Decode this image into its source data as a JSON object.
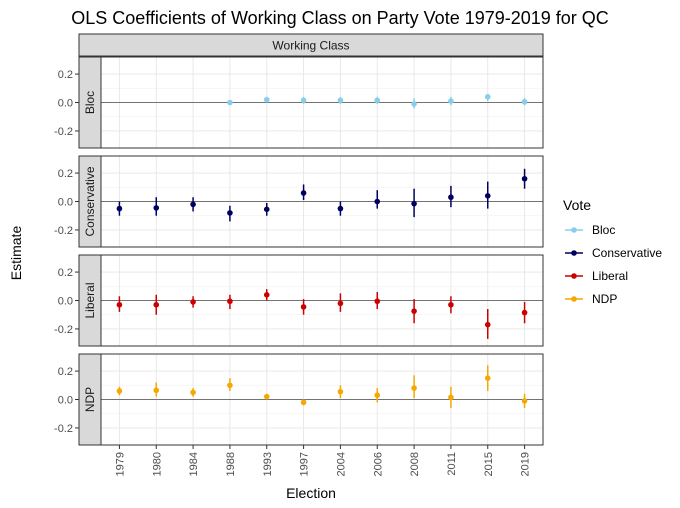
{
  "chart_data": {
    "type": "scatter",
    "title": "OLS Coefficients of Working Class on Party Vote 1979-2019 for QC",
    "strip_label": "Working Class",
    "xlabel": "Election",
    "ylabel": "Estimate",
    "legend_title": "Vote",
    "legend_position": "right",
    "grid": true,
    "categories": [
      "1979",
      "1980",
      "1984",
      "1988",
      "1993",
      "1997",
      "2004",
      "2006",
      "2008",
      "2011",
      "2015",
      "2019"
    ],
    "ylim": [
      -0.32,
      0.32
    ],
    "yticks": [
      0.2,
      0.0,
      -0.2
    ],
    "ytick_labels": [
      "0.2",
      "0.0",
      "-0.2"
    ],
    "series": [
      {
        "name": "Bloc",
        "color": "#87ceeb",
        "points": [
          {
            "x": "1988",
            "y": 0.0,
            "lo": -0.01,
            "hi": 0.01
          },
          {
            "x": "1993",
            "y": 0.02,
            "lo": 0.0,
            "hi": 0.04
          },
          {
            "x": "1997",
            "y": 0.015,
            "lo": -0.01,
            "hi": 0.04
          },
          {
            "x": "2004",
            "y": 0.015,
            "lo": -0.01,
            "hi": 0.04
          },
          {
            "x": "2006",
            "y": 0.015,
            "lo": -0.01,
            "hi": 0.04
          },
          {
            "x": "2008",
            "y": -0.01,
            "lo": -0.04,
            "hi": 0.03
          },
          {
            "x": "2011",
            "y": 0.01,
            "lo": -0.02,
            "hi": 0.04
          },
          {
            "x": "2015",
            "y": 0.04,
            "lo": 0.01,
            "hi": 0.06
          },
          {
            "x": "2019",
            "y": 0.005,
            "lo": -0.02,
            "hi": 0.03
          }
        ]
      },
      {
        "name": "Conservative",
        "color": "#000060",
        "points": [
          {
            "x": "1979",
            "y": -0.05,
            "lo": -0.1,
            "hi": 0.0
          },
          {
            "x": "1980",
            "y": -0.045,
            "lo": -0.1,
            "hi": 0.03
          },
          {
            "x": "1984",
            "y": -0.02,
            "lo": -0.07,
            "hi": 0.03
          },
          {
            "x": "1988",
            "y": -0.08,
            "lo": -0.14,
            "hi": -0.03
          },
          {
            "x": "1993",
            "y": -0.055,
            "lo": -0.1,
            "hi": -0.01
          },
          {
            "x": "1997",
            "y": 0.06,
            "lo": 0.01,
            "hi": 0.12
          },
          {
            "x": "2004",
            "y": -0.05,
            "lo": -0.1,
            "hi": 0.0
          },
          {
            "x": "2006",
            "y": 0.0,
            "lo": -0.05,
            "hi": 0.08
          },
          {
            "x": "2008",
            "y": -0.015,
            "lo": -0.11,
            "hi": 0.09
          },
          {
            "x": "2011",
            "y": 0.03,
            "lo": -0.04,
            "hi": 0.11
          },
          {
            "x": "2015",
            "y": 0.04,
            "lo": -0.05,
            "hi": 0.14
          },
          {
            "x": "2019",
            "y": 0.16,
            "lo": 0.09,
            "hi": 0.23
          }
        ]
      },
      {
        "name": "Liberal",
        "color": "#cc0000",
        "points": [
          {
            "x": "1979",
            "y": -0.03,
            "lo": -0.08,
            "hi": 0.03
          },
          {
            "x": "1980",
            "y": -0.03,
            "lo": -0.1,
            "hi": 0.04
          },
          {
            "x": "1984",
            "y": -0.01,
            "lo": -0.05,
            "hi": 0.03
          },
          {
            "x": "1988",
            "y": -0.005,
            "lo": -0.06,
            "hi": 0.04
          },
          {
            "x": "1993",
            "y": 0.04,
            "lo": 0.0,
            "hi": 0.08
          },
          {
            "x": "1997",
            "y": -0.045,
            "lo": -0.1,
            "hi": 0.01
          },
          {
            "x": "2004",
            "y": -0.02,
            "lo": -0.08,
            "hi": 0.05
          },
          {
            "x": "2006",
            "y": -0.005,
            "lo": -0.06,
            "hi": 0.06
          },
          {
            "x": "2008",
            "y": -0.075,
            "lo": -0.16,
            "hi": 0.01
          },
          {
            "x": "2011",
            "y": -0.03,
            "lo": -0.09,
            "hi": 0.03
          },
          {
            "x": "2015",
            "y": -0.17,
            "lo": -0.27,
            "hi": -0.06
          },
          {
            "x": "2019",
            "y": -0.085,
            "lo": -0.16,
            "hi": -0.01
          }
        ]
      },
      {
        "name": "NDP",
        "color": "#f5a800",
        "points": [
          {
            "x": "1979",
            "y": 0.06,
            "lo": 0.03,
            "hi": 0.09
          },
          {
            "x": "1980",
            "y": 0.065,
            "lo": 0.02,
            "hi": 0.12
          },
          {
            "x": "1984",
            "y": 0.05,
            "lo": 0.02,
            "hi": 0.08
          },
          {
            "x": "1988",
            "y": 0.1,
            "lo": 0.06,
            "hi": 0.15
          },
          {
            "x": "1993",
            "y": 0.02,
            "lo": 0.0,
            "hi": 0.04
          },
          {
            "x": "1997",
            "y": -0.02,
            "lo": -0.04,
            "hi": 0.0
          },
          {
            "x": "2004",
            "y": 0.055,
            "lo": 0.01,
            "hi": 0.1
          },
          {
            "x": "2006",
            "y": 0.03,
            "lo": -0.02,
            "hi": 0.08
          },
          {
            "x": "2008",
            "y": 0.08,
            "lo": 0.01,
            "hi": 0.17
          },
          {
            "x": "2011",
            "y": 0.015,
            "lo": -0.06,
            "hi": 0.09
          },
          {
            "x": "2015",
            "y": 0.15,
            "lo": 0.06,
            "hi": 0.24
          },
          {
            "x": "2019",
            "y": -0.01,
            "lo": -0.06,
            "hi": 0.04
          }
        ]
      }
    ]
  }
}
